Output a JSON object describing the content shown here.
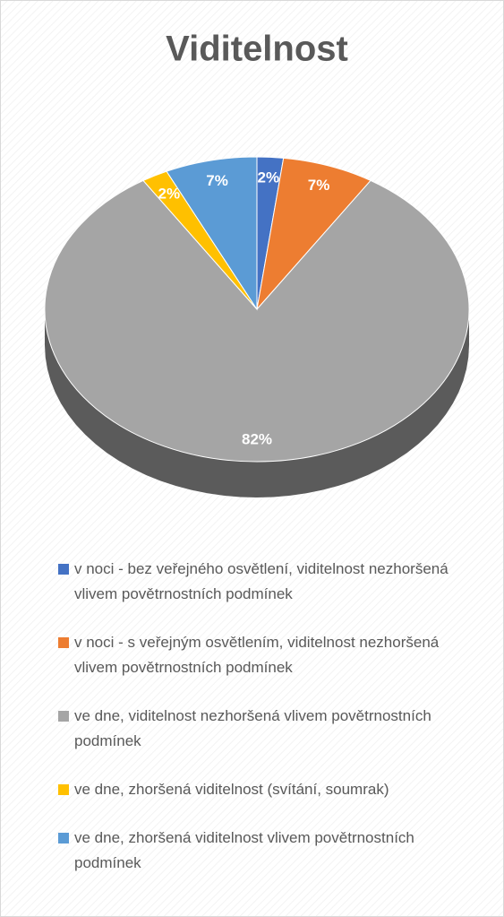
{
  "chart_data": {
    "type": "pie",
    "title": "Viditelnost",
    "categories": [
      "v noci - bez veřejného osvětlení, viditelnost nezhoršená vlivem povětrnostních podmínek",
      "v noci - s veřejným osvětlením, viditelnost nezhoršená vlivem povětrnostních podmínek",
      "ve dne, viditelnost nezhoršená vlivem povětrnostních podmínek",
      "ve dne, zhoršená viditelnost (svítání, soumrak)",
      "ve dne, zhoršená viditelnost vlivem povětrnostních podmínek"
    ],
    "values": [
      2,
      7,
      82,
      2,
      7
    ],
    "value_labels": [
      "2%",
      "7%",
      "82%",
      "2%",
      "7%"
    ],
    "colors": [
      "#4472c4",
      "#ed7d31",
      "#a5a5a5",
      "#ffc000",
      "#5b9bd5"
    ],
    "legend": "bottom"
  }
}
